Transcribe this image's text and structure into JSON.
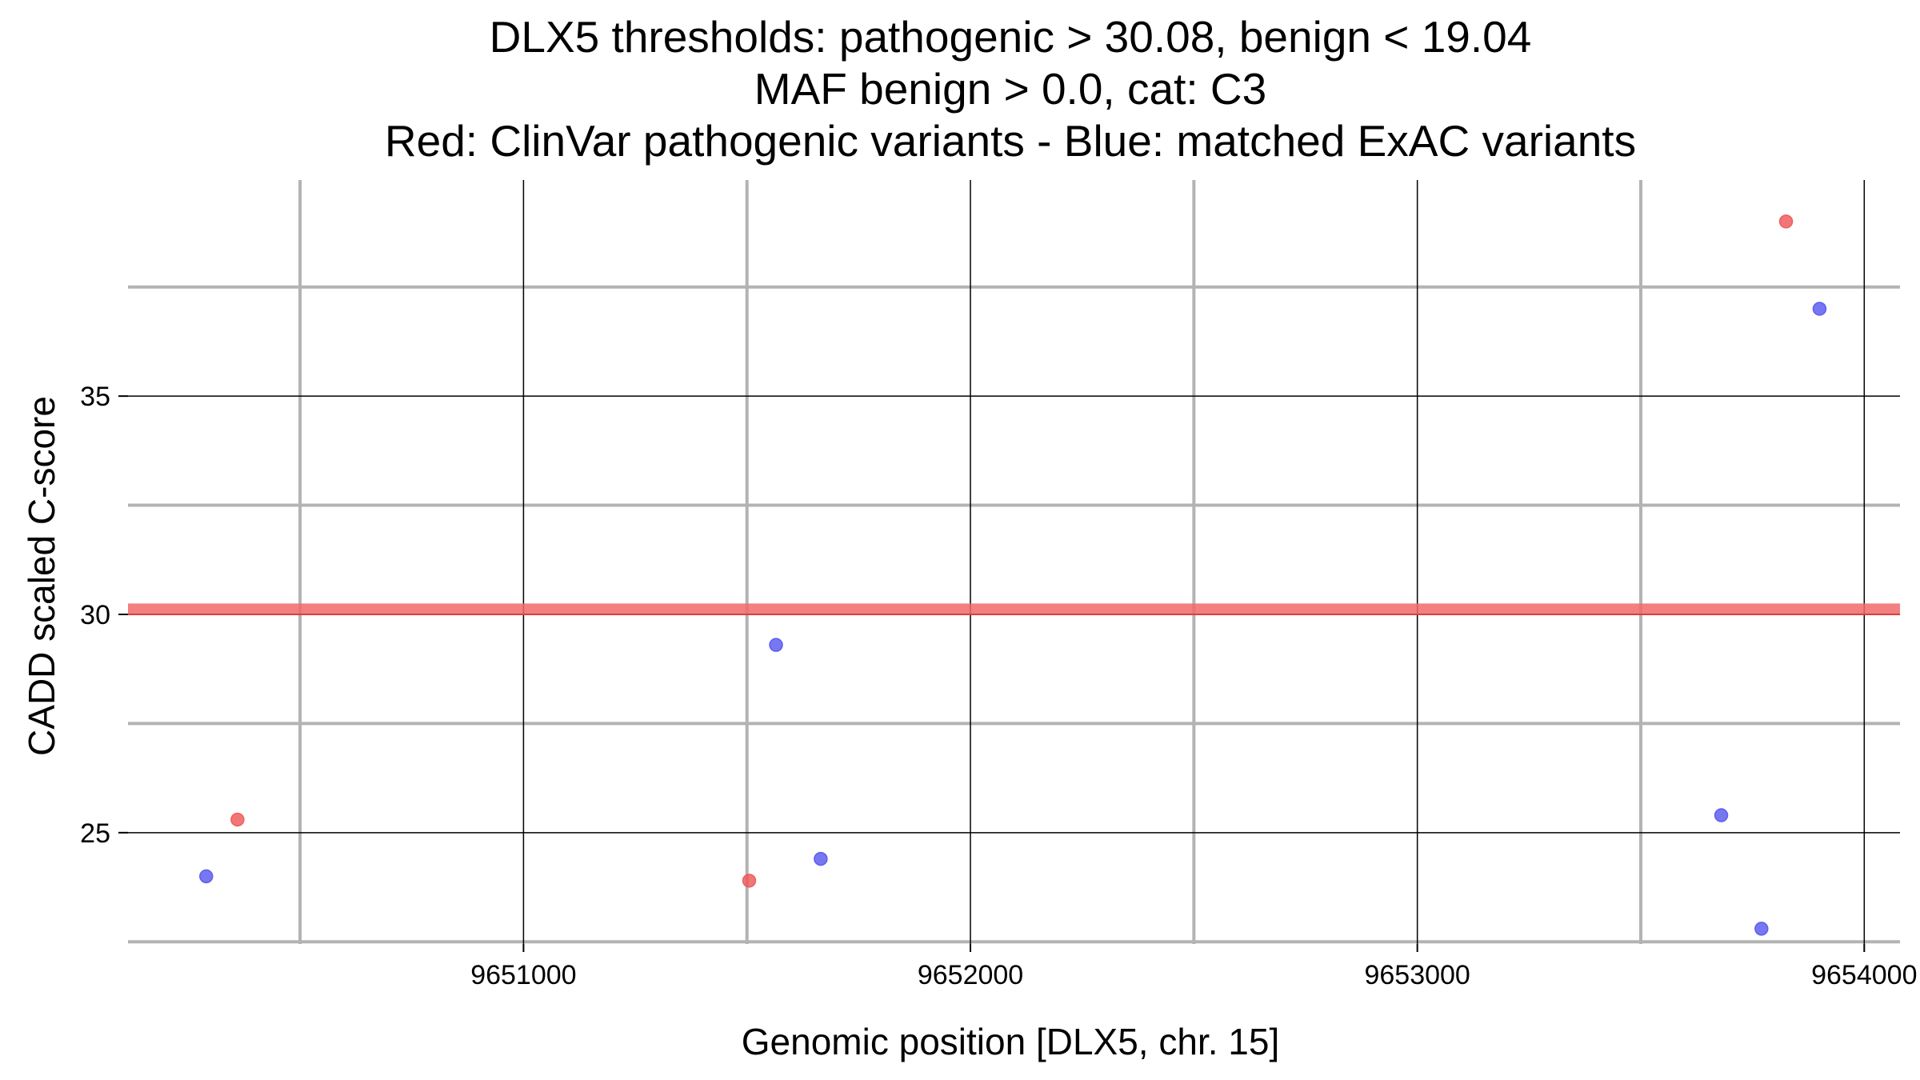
{
  "chart_data": {
    "type": "scatter",
    "title_lines": [
      "DLX5 thresholds: pathogenic > 30.08, benign < 19.04",
      "MAF benign > 0.0, cat: C3",
      "Red: ClinVar pathogenic variants - Blue: matched ExAC variants"
    ],
    "xlabel": "Genomic position [DLX5, chr. 15]",
    "ylabel": "CADD scaled C-score",
    "xlim": [
      9650115,
      9654080
    ],
    "ylim": [
      22.45,
      39.95
    ],
    "x_ticks": [
      {
        "value": 9651000,
        "label": "9651000"
      },
      {
        "value": 9652000,
        "label": "9652000"
      },
      {
        "value": 9653000,
        "label": "9653000"
      },
      {
        "value": 9654000,
        "label": "9654000"
      }
    ],
    "y_ticks": [
      {
        "value": 25,
        "label": "25"
      },
      {
        "value": 30,
        "label": "30"
      },
      {
        "value": 35,
        "label": "35"
      }
    ],
    "x_minor_grid": [
      9650500,
      9651500,
      9652500,
      9653500
    ],
    "y_minor_grid": [
      22.5,
      27.5,
      32.5,
      37.5
    ],
    "grid": true,
    "threshold_band": {
      "from": 30.0,
      "to": 30.25,
      "color": "#f06a6a"
    },
    "series": [
      {
        "color": "#ee5555",
        "points": [
          {
            "x": 9650360,
            "y": 25.3
          },
          {
            "x": 9651505,
            "y": 23.9
          },
          {
            "x": 9653825,
            "y": 39.0
          }
        ]
      },
      {
        "color": "#5555ee",
        "points": [
          {
            "x": 9650290,
            "y": 24.0
          },
          {
            "x": 9651565,
            "y": 29.3
          },
          {
            "x": 9651665,
            "y": 24.4
          },
          {
            "x": 9653680,
            "y": 25.4
          },
          {
            "x": 9653770,
            "y": 22.8
          },
          {
            "x": 9653900,
            "y": 37.0
          }
        ]
      }
    ]
  }
}
